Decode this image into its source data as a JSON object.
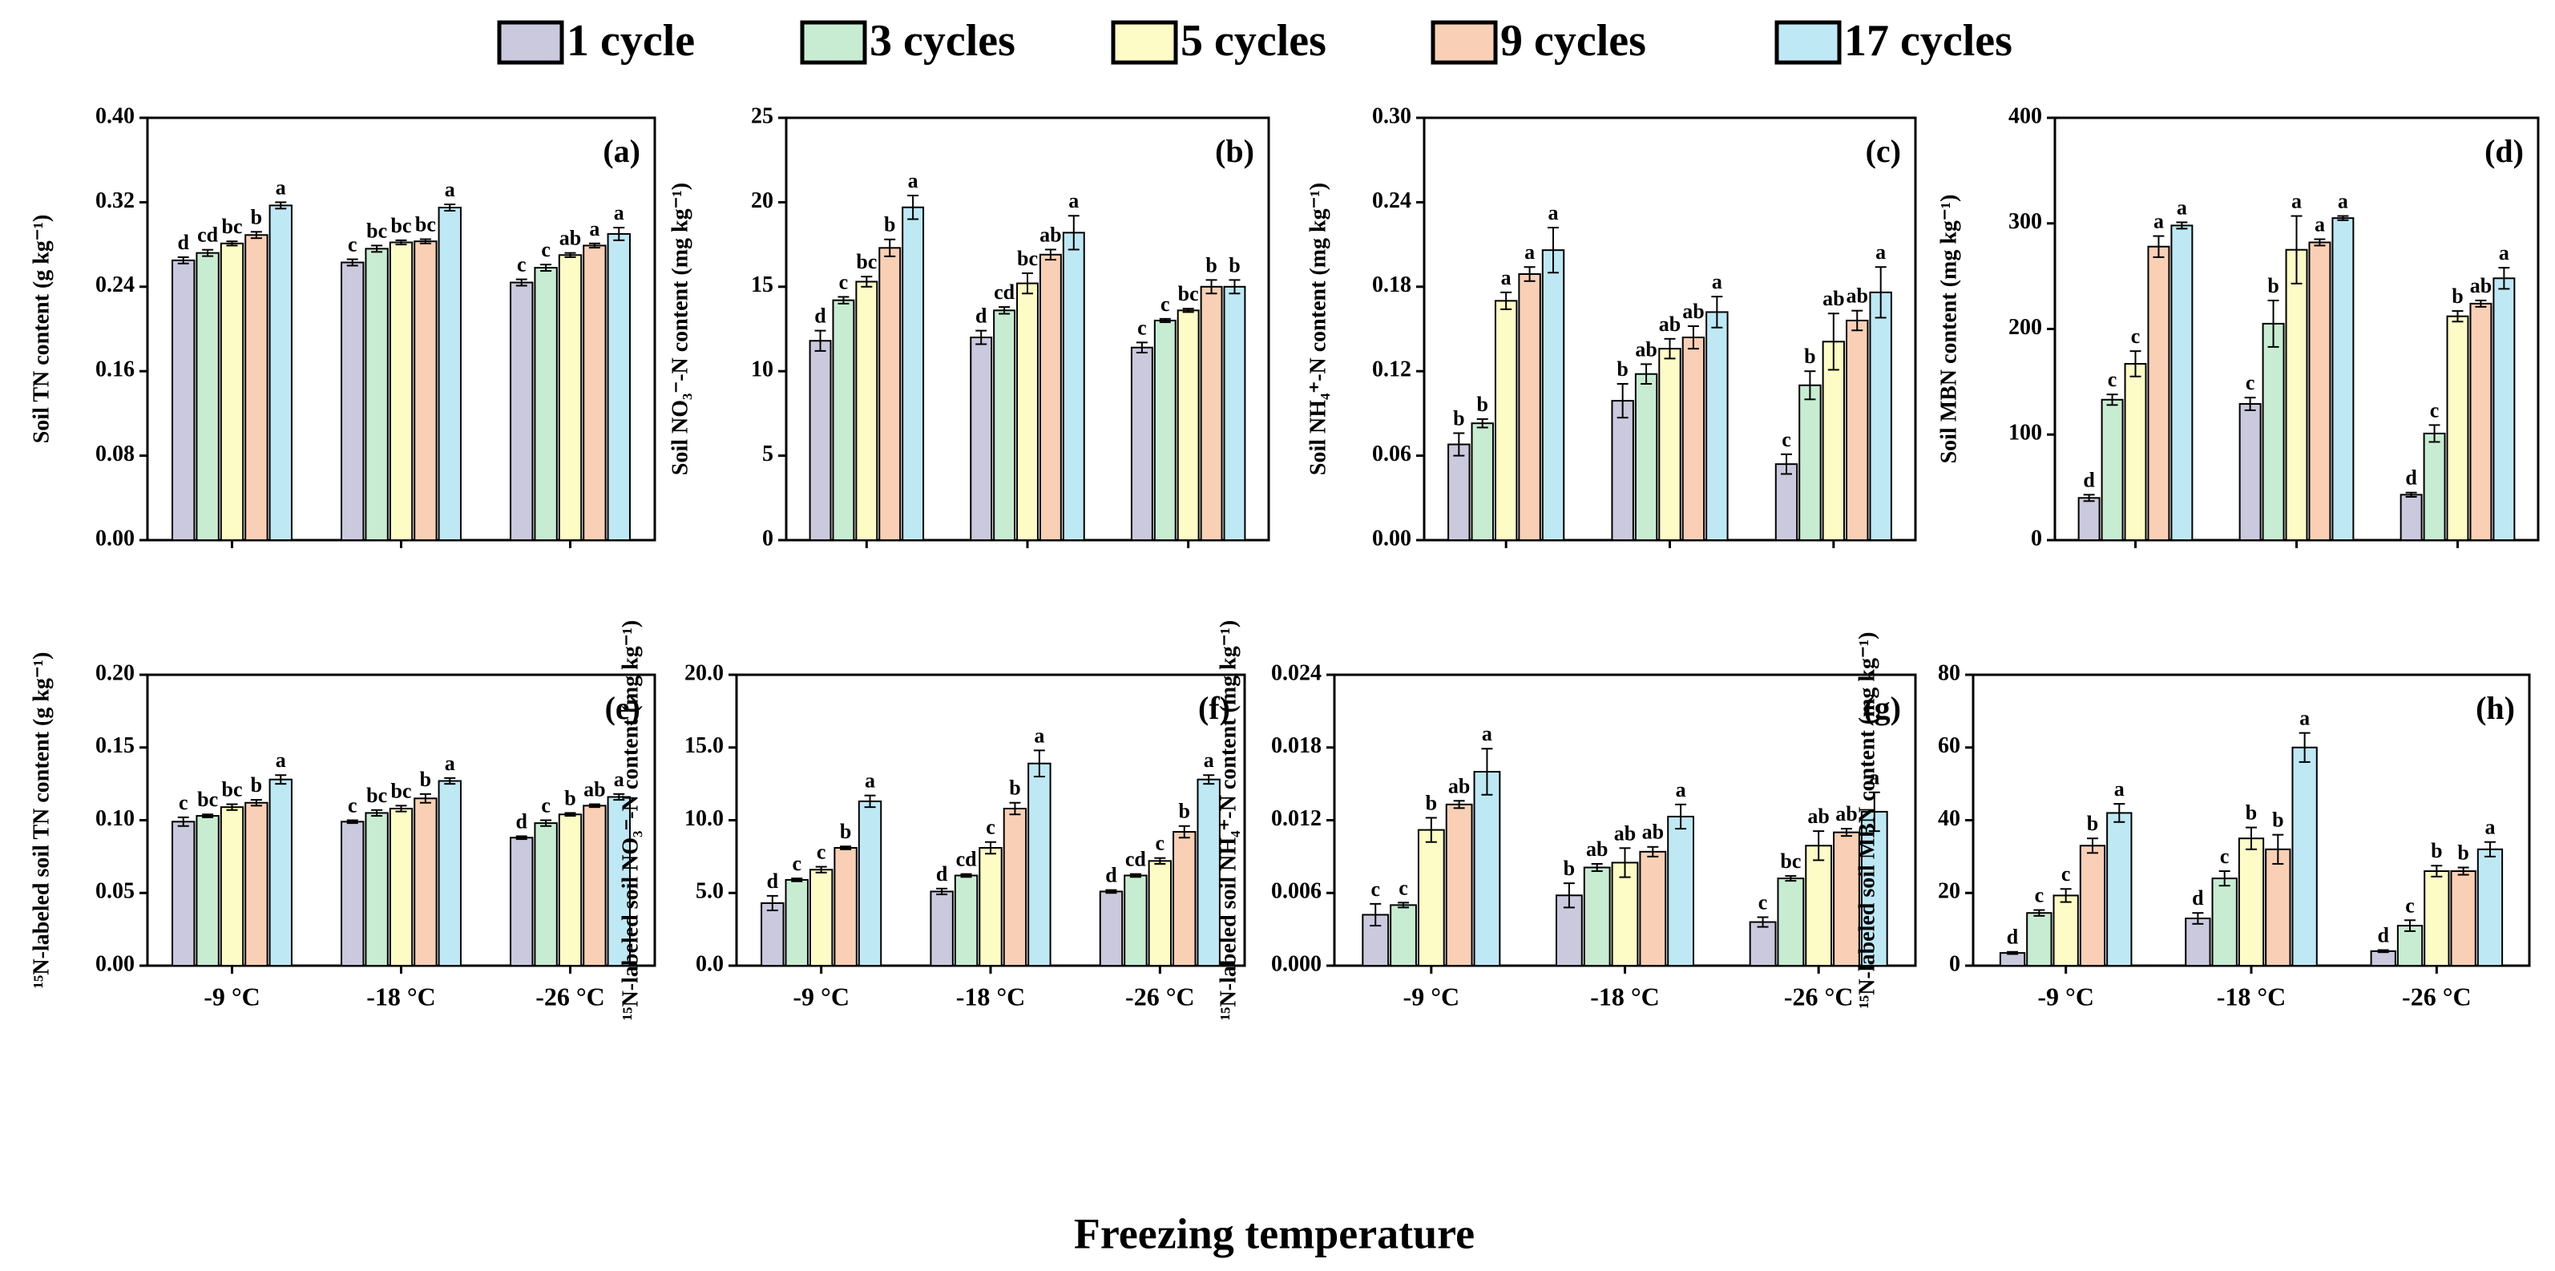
{
  "legend": [
    {
      "name": "1 cycle",
      "color": "#cbc9de"
    },
    {
      "name": "3 cycles",
      "color": "#c8ecd2"
    },
    {
      "name": "5 cycles",
      "color": "#fdfbc6"
    },
    {
      "name": "9 cycles",
      "color": "#f9d0b6"
    },
    {
      "name": "17 cycles",
      "color": "#bfe8f5"
    }
  ],
  "xlabel": "Freezing temperature",
  "chart_data": [
    {
      "type": "bar",
      "title": "(a)",
      "ylabel": "Soil TN content (g kg⁻¹)",
      "ylim": [
        0,
        0.4
      ],
      "yticks": [
        {
          "value": 0,
          "label": "0.00"
        },
        0.08,
        0.16,
        0.24,
        0.32,
        {
          "value": 0.4,
          "label": "0.40"
        }
      ],
      "series": [
        {
          "values": [
            0.265,
            0.263,
            0.244
          ],
          "errors": [
            0.003,
            0.003,
            0.003
          ],
          "labels": [
            "d",
            "c",
            "c"
          ]
        },
        {
          "values": [
            0.272,
            0.276,
            0.258
          ],
          "errors": [
            0.003,
            0.003,
            0.003
          ],
          "labels": [
            "cd",
            "bc",
            "c"
          ]
        },
        {
          "values": [
            0.281,
            0.282,
            0.27
          ],
          "errors": [
            0.002,
            0.002,
            0.002
          ],
          "labels": [
            "bc",
            "bc",
            "ab"
          ]
        },
        {
          "values": [
            0.289,
            0.283,
            0.279
          ],
          "errors": [
            0.003,
            0.002,
            0.002
          ],
          "labels": [
            "b",
            "bc",
            "a"
          ]
        },
        {
          "values": [
            0.317,
            0.315,
            0.29
          ],
          "errors": [
            0.003,
            0.003,
            0.006
          ],
          "labels": [
            "a",
            "a",
            "a"
          ]
        }
      ]
    },
    {
      "type": "bar",
      "title": "(b)",
      "ylabel": "Soil NO₃⁻-N content (mg kg⁻¹)",
      "ylim": [
        0,
        25
      ],
      "yticks": [
        0,
        5,
        10,
        15,
        20,
        25
      ],
      "series": [
        {
          "values": [
            11.8,
            12.0,
            11.4
          ],
          "errors": [
            0.6,
            0.4,
            0.3
          ],
          "labels": [
            "d",
            "d",
            "c"
          ]
        },
        {
          "values": [
            14.2,
            13.6,
            13.0
          ],
          "errors": [
            0.2,
            0.2,
            0.1
          ],
          "labels": [
            "c",
            "cd",
            "c"
          ]
        },
        {
          "values": [
            15.3,
            15.2,
            13.6
          ],
          "errors": [
            0.3,
            0.6,
            0.1
          ],
          "labels": [
            "bc",
            "bc",
            "bc"
          ]
        },
        {
          "values": [
            17.3,
            16.9,
            15.0
          ],
          "errors": [
            0.5,
            0.3,
            0.4
          ],
          "labels": [
            "b",
            "ab",
            "b"
          ]
        },
        {
          "values": [
            19.7,
            18.2,
            15.0
          ],
          "errors": [
            0.7,
            1.0,
            0.4
          ],
          "labels": [
            "a",
            "a",
            "b"
          ]
        }
      ]
    },
    {
      "type": "bar",
      "title": "(c)",
      "ylabel": "Soil NH₄⁺-N content (mg kg⁻¹)",
      "ylim": [
        0,
        0.3
      ],
      "yticks": [
        {
          "value": 0,
          "label": "0.00"
        },
        0.06,
        0.12,
        0.18,
        0.24,
        {
          "value": 0.3,
          "label": "0.30"
        }
      ],
      "series": [
        {
          "values": [
            0.068,
            0.099,
            0.054
          ],
          "errors": [
            0.008,
            0.012,
            0.007
          ],
          "labels": [
            "b",
            "b",
            "c"
          ]
        },
        {
          "values": [
            0.083,
            0.118,
            0.11
          ],
          "errors": [
            0.003,
            0.007,
            0.01
          ],
          "labels": [
            "b",
            "ab",
            "b"
          ]
        },
        {
          "values": [
            0.17,
            0.136,
            0.141
          ],
          "errors": [
            0.006,
            0.007,
            0.02
          ],
          "labels": [
            "a",
            "ab",
            "ab"
          ]
        },
        {
          "values": [
            0.189,
            0.144,
            0.156
          ],
          "errors": [
            0.005,
            0.008,
            0.007
          ],
          "labels": [
            "a",
            "ab",
            "ab"
          ]
        },
        {
          "values": [
            0.206,
            0.162,
            0.176
          ],
          "errors": [
            0.016,
            0.011,
            0.018
          ],
          "labels": [
            "a",
            "a",
            "a"
          ]
        }
      ]
    },
    {
      "type": "bar",
      "title": "(d)",
      "ylabel": "Soil MBN content (mg kg⁻¹)",
      "ylim": [
        0,
        400
      ],
      "yticks": [
        0,
        100,
        200,
        300,
        400
      ],
      "series": [
        {
          "values": [
            40,
            129,
            43
          ],
          "errors": [
            3,
            6,
            2
          ],
          "labels": [
            "d",
            "c",
            "d"
          ]
        },
        {
          "values": [
            133,
            205,
            101
          ],
          "errors": [
            5,
            22,
            8
          ],
          "labels": [
            "c",
            "b",
            "c"
          ]
        },
        {
          "values": [
            167,
            275,
            212
          ],
          "errors": [
            12,
            32,
            5
          ],
          "labels": [
            "c",
            "a",
            "b"
          ]
        },
        {
          "values": [
            278,
            282,
            224
          ],
          "errors": [
            10,
            3,
            3
          ],
          "labels": [
            "a",
            "a",
            "ab"
          ]
        },
        {
          "values": [
            298,
            305,
            248
          ],
          "errors": [
            3,
            2,
            10
          ],
          "labels": [
            "a",
            "a",
            "a"
          ]
        }
      ]
    },
    {
      "type": "bar",
      "title": "(e)",
      "ylabel": "¹⁵N-labeled soil TN content (g kg⁻¹)",
      "categories": [
        "-9 °C",
        "-18 °C",
        "-26 °C"
      ],
      "ylim": [
        0,
        0.2
      ],
      "yticks": [
        {
          "value": 0,
          "label": "0.00"
        },
        0.05,
        {
          "value": 0.1,
          "label": "0.10"
        },
        0.15,
        {
          "value": 0.2,
          "label": "0.20"
        }
      ],
      "series": [
        {
          "values": [
            0.099,
            0.099,
            0.088
          ],
          "errors": [
            0.003,
            0.001,
            0.001
          ],
          "labels": [
            "c",
            "c",
            "d"
          ]
        },
        {
          "values": [
            0.103,
            0.105,
            0.098
          ],
          "errors": [
            0.001,
            0.002,
            0.002
          ],
          "labels": [
            "bc",
            "bc",
            "c"
          ]
        },
        {
          "values": [
            0.109,
            0.108,
            0.104
          ],
          "errors": [
            0.002,
            0.002,
            0.001
          ],
          "labels": [
            "bc",
            "bc",
            "b"
          ]
        },
        {
          "values": [
            0.112,
            0.115,
            0.11
          ],
          "errors": [
            0.002,
            0.003,
            0.001
          ],
          "labels": [
            "b",
            "b",
            "ab"
          ]
        },
        {
          "values": [
            0.128,
            0.127,
            0.116
          ],
          "errors": [
            0.003,
            0.002,
            0.002
          ],
          "labels": [
            "a",
            "a",
            "a"
          ]
        }
      ]
    },
    {
      "type": "bar",
      "title": "(f)",
      "ylabel": "¹⁵N-labeled soil NO₃⁻-N content (mg kg⁻¹)",
      "categories": [
        "-9 °C",
        "-18 °C",
        "-26 °C"
      ],
      "ylim": [
        0,
        20
      ],
      "yticks": [
        {
          "value": 0,
          "label": "0.0"
        },
        {
          "value": 5,
          "label": "5.0"
        },
        {
          "value": 10,
          "label": "10.0"
        },
        {
          "value": 15,
          "label": "15.0"
        },
        {
          "value": 20,
          "label": "20.0"
        }
      ],
      "series": [
        {
          "values": [
            4.3,
            5.1,
            5.1
          ],
          "errors": [
            0.5,
            0.2,
            0.1
          ],
          "labels": [
            "d",
            "d",
            "d"
          ]
        },
        {
          "values": [
            5.9,
            6.2,
            6.2
          ],
          "errors": [
            0.1,
            0.1,
            0.1
          ],
          "labels": [
            "c",
            "cd",
            "cd"
          ]
        },
        {
          "values": [
            6.6,
            8.1,
            7.2
          ],
          "errors": [
            0.2,
            0.4,
            0.2
          ],
          "labels": [
            "c",
            "c",
            "c"
          ]
        },
        {
          "values": [
            8.1,
            10.8,
            9.2
          ],
          "errors": [
            0.1,
            0.4,
            0.4
          ],
          "labels": [
            "b",
            "b",
            "b"
          ]
        },
        {
          "values": [
            11.3,
            13.9,
            12.8
          ],
          "errors": [
            0.4,
            0.9,
            0.3
          ],
          "labels": [
            "a",
            "a",
            "a"
          ]
        }
      ]
    },
    {
      "type": "bar",
      "title": "(g)",
      "ylabel": "¹⁵N-labeled soil NH₄⁺-N content (mg kg⁻¹)",
      "categories": [
        "-9 °C",
        "-18 °C",
        "-26 °C"
      ],
      "ylim": [
        0,
        0.024
      ],
      "yticks": [
        {
          "value": 0,
          "label": "0.000"
        },
        0.006,
        0.012,
        0.018,
        0.024
      ],
      "series": [
        {
          "values": [
            0.0042,
            0.0058,
            0.0036
          ],
          "errors": [
            0.0009,
            0.001,
            0.0004
          ],
          "labels": [
            "c",
            "b",
            "c"
          ]
        },
        {
          "values": [
            0.005,
            0.0081,
            0.0072
          ],
          "errors": [
            0.0002,
            0.0003,
            0.0002
          ],
          "labels": [
            "c",
            "ab",
            "bc"
          ]
        },
        {
          "values": [
            0.0112,
            0.0085,
            0.0099
          ],
          "errors": [
            0.001,
            0.0012,
            0.0012
          ],
          "labels": [
            "b",
            "ab",
            "ab"
          ]
        },
        {
          "values": [
            0.0133,
            0.0094,
            0.011
          ],
          "errors": [
            0.0003,
            0.0004,
            0.0003
          ],
          "labels": [
            "ab",
            "ab",
            "ab"
          ]
        },
        {
          "values": [
            0.016,
            0.0123,
            0.0127
          ],
          "errors": [
            0.0019,
            0.001,
            0.0016
          ],
          "labels": [
            "a",
            "a",
            "a"
          ]
        }
      ]
    },
    {
      "type": "bar",
      "title": "(h)",
      "ylabel": "¹⁵N-labeled soil MBN content (mg kg⁻¹)",
      "categories": [
        "-9 °C",
        "-18 °C",
        "-26 °C"
      ],
      "ylim": [
        0,
        80
      ],
      "yticks": [
        0,
        20,
        40,
        60,
        80
      ],
      "series": [
        {
          "values": [
            3.5,
            13,
            4
          ],
          "errors": [
            0.3,
            1.5,
            0.3
          ],
          "labels": [
            "d",
            "d",
            "d"
          ]
        },
        {
          "values": [
            14.5,
            24,
            11
          ],
          "errors": [
            0.8,
            2,
            1.5
          ],
          "labels": [
            "c",
            "c",
            "c"
          ]
        },
        {
          "values": [
            19.3,
            35,
            26
          ],
          "errors": [
            1.8,
            3,
            1.5
          ],
          "labels": [
            "c",
            "b",
            "b"
          ]
        },
        {
          "values": [
            33,
            32,
            26
          ],
          "errors": [
            2,
            4,
            1
          ],
          "labels": [
            "b",
            "b",
            "b"
          ]
        },
        {
          "values": [
            42,
            60,
            32
          ],
          "errors": [
            2.5,
            4,
            2
          ],
          "labels": [
            "a",
            "a",
            "a"
          ]
        }
      ]
    }
  ]
}
